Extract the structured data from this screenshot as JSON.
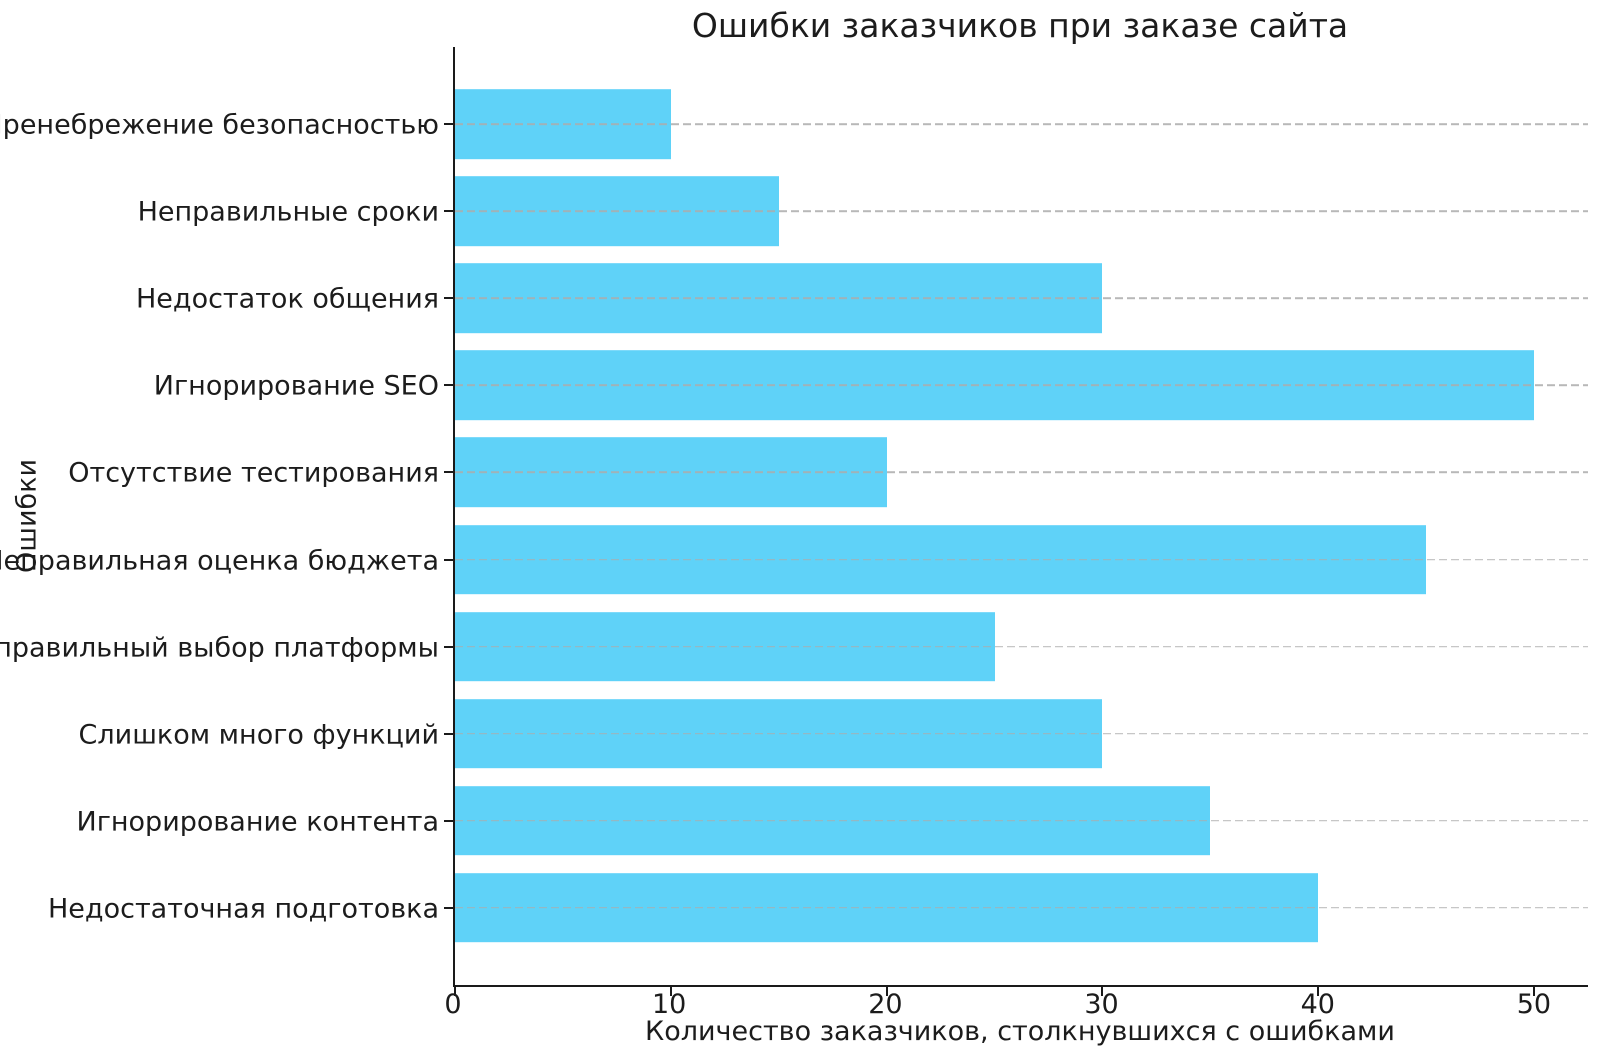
{
  "chart_data": {
    "type": "bar",
    "orientation": "horizontal",
    "title": "Ошибки заказчиков при заказе сайта",
    "xlabel": "Количество заказчиков, столкнувшихся с ошибками",
    "ylabel": "Ошибки",
    "categories_top_to_bottom": [
      "Пренебрежение безопасностью",
      "Неправильные сроки",
      "Недостаток общения",
      "Игнорирование SEO",
      "Отсутствие тестирования",
      "Неправильная оценка бюджета",
      "Неправильный выбор платформы",
      "Слишком много функций",
      "Игнорирование контента",
      "Недостаточная подготовка"
    ],
    "values": [
      10,
      15,
      30,
      50,
      20,
      45,
      25,
      30,
      35,
      40
    ],
    "xticks": [
      0,
      10,
      20,
      30,
      40,
      50
    ],
    "xlim": [
      0,
      52.5
    ],
    "bar_color": "#5fd2f8",
    "grid": {
      "axis": "y",
      "linestyle": "dashed",
      "color": "#c8c8c8",
      "drawn_above_bars": true
    },
    "legend": null,
    "background_color": "#ffffff",
    "text_color": "#1c1c1c"
  }
}
